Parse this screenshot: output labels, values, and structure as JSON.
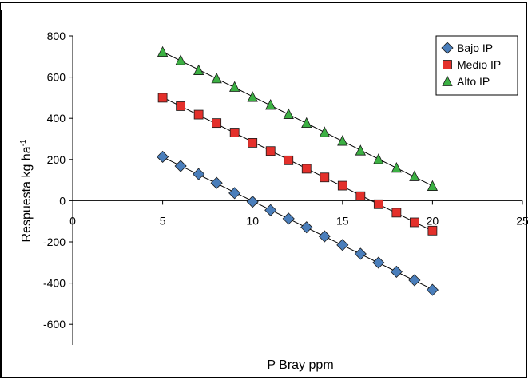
{
  "chart_data": {
    "type": "scatter",
    "title": "",
    "xlabel": "P Bray ppm",
    "ylabel_main": "Respuesta kg ha",
    "ylabel_sup": "-1",
    "xlim": [
      0,
      25
    ],
    "ylim": [
      -700,
      800
    ],
    "x_ticks": [
      0,
      5,
      10,
      15,
      20,
      25
    ],
    "x_tick_labels": [
      "0",
      "5",
      "10",
      "15",
      "20",
      "25"
    ],
    "y_ticks": [
      800,
      600,
      400,
      200,
      0,
      -200,
      -400,
      -600
    ],
    "y_tick_labels": [
      "800",
      "600",
      "400",
      "200",
      "0",
      "-200",
      "-400",
      "-600"
    ],
    "grid": false,
    "legend_position": "top-right",
    "series": [
      {
        "name": "Bajo IP",
        "marker": "diamond",
        "color": "#4a7ebb",
        "x": [
          5,
          6,
          7,
          8,
          9,
          10,
          11,
          12,
          13,
          14,
          15,
          16,
          17,
          18,
          19,
          20
        ],
        "y": [
          213,
          168,
          129,
          86,
          37,
          -5,
          -46,
          -87,
          -129,
          -173,
          -215,
          -258,
          -301,
          -345,
          -386,
          -433
        ]
      },
      {
        "name": "Medio IP",
        "marker": "square",
        "color": "#e4302b",
        "x": [
          5,
          6,
          7,
          8,
          9,
          10,
          11,
          12,
          13,
          14,
          15,
          16,
          17,
          18,
          19,
          20
        ],
        "y": [
          500,
          459,
          418,
          377,
          331,
          281,
          241,
          196,
          155,
          113,
          73,
          22,
          -17,
          -58,
          -105,
          -145
        ]
      },
      {
        "name": "Alto IP",
        "marker": "triangle",
        "color": "#3cb043",
        "x": [
          5,
          6,
          7,
          8,
          9,
          10,
          11,
          12,
          13,
          14,
          15,
          16,
          17,
          18,
          19,
          20
        ],
        "y": [
          722,
          681,
          633,
          593,
          552,
          503,
          465,
          420,
          377,
          332,
          290,
          243,
          201,
          159,
          118,
          71
        ]
      }
    ]
  }
}
